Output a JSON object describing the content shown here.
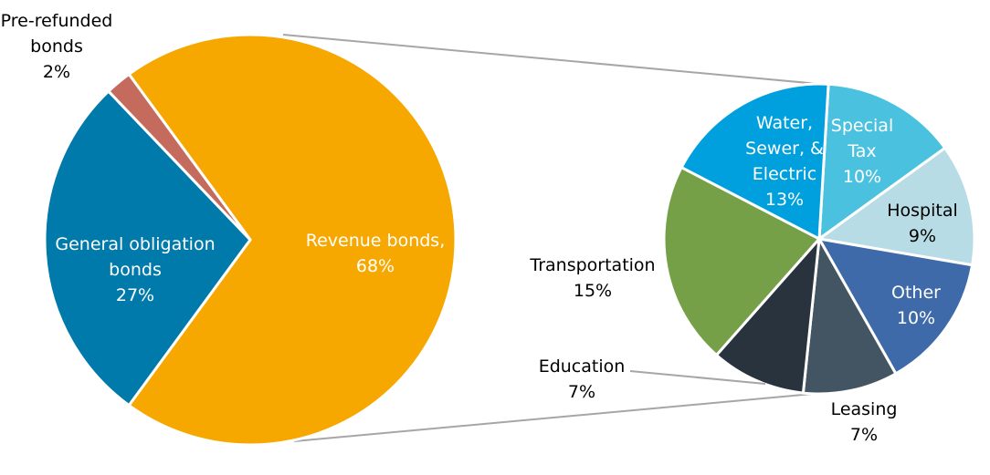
{
  "chart_data": {
    "type": "pie-of-pie",
    "main_pie": {
      "slices": [
        {
          "label": [
            "Revenue bonds,",
            "68%"
          ],
          "value": 68,
          "color": "#F7A800",
          "label_color": "#ffffff"
        },
        {
          "label": [
            "General obligation",
            "bonds",
            "27%"
          ],
          "value": 27,
          "color": "#0079AB",
          "label_color": "#ffffff"
        },
        {
          "label": [
            "Pre-refunded",
            "bonds",
            "2%"
          ],
          "value": 2,
          "color": "#C56B5E",
          "label_color": "#000000"
        }
      ]
    },
    "breakout_pie": {
      "parent": "Revenue bonds",
      "slices": [
        {
          "label": [
            "Special",
            "Tax",
            "10%"
          ],
          "value": 10,
          "color": "#4BC1E0",
          "label_color": "#ffffff"
        },
        {
          "label": [
            "Hospital",
            "9%"
          ],
          "value": 9,
          "color": "#B8DCE5",
          "label_color": "#000000"
        },
        {
          "label": [
            "Other",
            "10%"
          ],
          "value": 10,
          "color": "#3E6AA9",
          "label_color": "#ffffff"
        },
        {
          "label": [
            "Leasing",
            "7%"
          ],
          "value": 7,
          "color": "#435563",
          "label_color": "#000000"
        },
        {
          "label": [
            "Education",
            "7%"
          ],
          "value": 7,
          "color": "#28333E",
          "label_color": "#000000"
        },
        {
          "label": [
            "Transportation",
            "15%"
          ],
          "value": 15,
          "color": "#76A047",
          "label_color": "#000000"
        },
        {
          "label": [
            "Water,",
            "Sewer, &",
            "Electric",
            "13%"
          ],
          "value": 13,
          "color": "#00A0DF",
          "label_color": "#ffffff"
        }
      ]
    },
    "connector_color": "#A6A6A6"
  }
}
